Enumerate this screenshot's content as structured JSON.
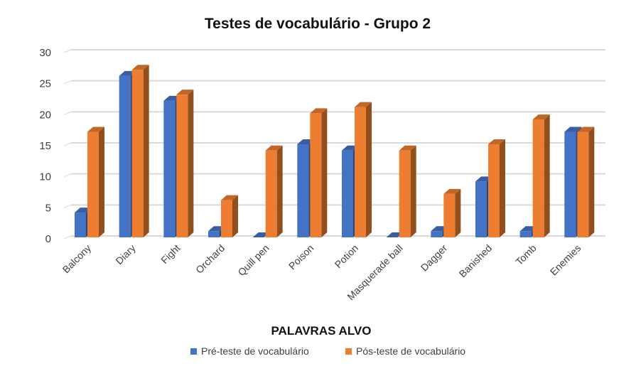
{
  "chart_data": {
    "type": "bar",
    "title": "Testes de vocabulário - Grupo 2",
    "xlabel": "PALAVRAS ALVO",
    "ylabel": "",
    "ylim": [
      0,
      30
    ],
    "yticks": [
      0,
      5,
      10,
      15,
      20,
      25,
      30
    ],
    "grid": true,
    "legend_position": "bottom",
    "categories": [
      "Balcony",
      "Diary",
      "Fight",
      "Orchard",
      "Quill pen",
      "Poison",
      "Potion",
      "Masquerade ball",
      "Dagger",
      "Banished",
      "Tomb",
      "Enemies"
    ],
    "series": [
      {
        "name": "Pré-teste de vocabulário",
        "color": "#4472c4",
        "values": [
          4,
          26,
          22,
          1,
          0,
          15,
          14,
          0,
          1,
          9,
          1,
          17
        ]
      },
      {
        "name": "Pós-teste de vocabulário",
        "color": "#ed7d31",
        "values": [
          17,
          27,
          23,
          6,
          14,
          20,
          21,
          14,
          7,
          15,
          19,
          17
        ]
      }
    ]
  }
}
